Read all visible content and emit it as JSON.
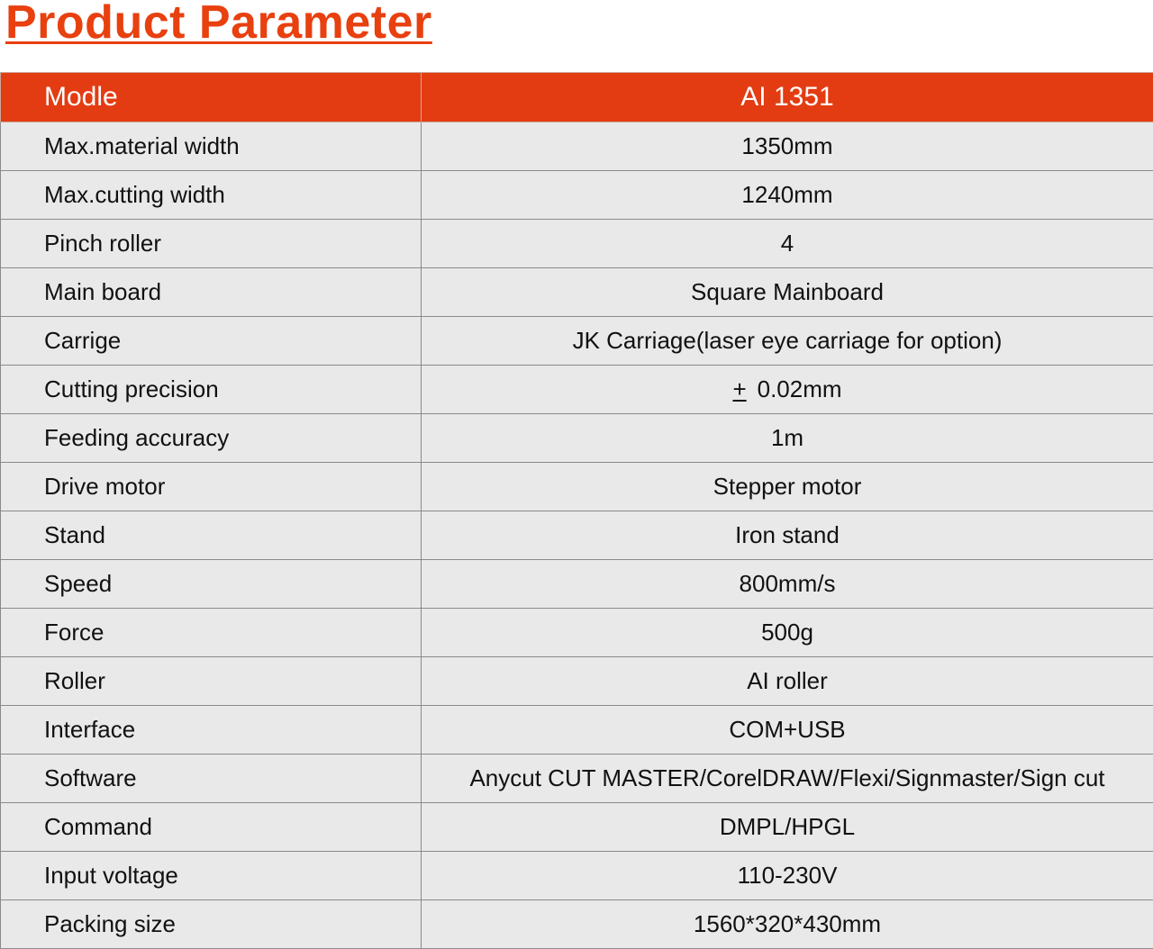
{
  "title": "Product Parameter",
  "table": {
    "header": [
      "Modle",
      "AI 1351"
    ],
    "rows": [
      {
        "label": "Max.material width",
        "value": "1350mm"
      },
      {
        "label": "Max.cutting width",
        "value": "1240mm"
      },
      {
        "label": "Pinch roller",
        "value": "4"
      },
      {
        "label": "Main board",
        "value": "Square Mainboard"
      },
      {
        "label": "Carrige",
        "value": "JK Carriage(laser eye carriage for option)"
      },
      {
        "label": "Cutting precision",
        "value": "0.02mm",
        "value_prefix": "+"
      },
      {
        "label": "Feeding accuracy",
        "value": "1m"
      },
      {
        "label": "Drive motor",
        "value": "Stepper motor"
      },
      {
        "label": "Stand",
        "value": "Iron stand"
      },
      {
        "label": "Speed",
        "value": "800mm/s"
      },
      {
        "label": "Force",
        "value": "500g"
      },
      {
        "label": "Roller",
        "value": "AI roller"
      },
      {
        "label": "Interface",
        "value": "COM+USB"
      },
      {
        "label": "Software",
        "value": "Anycut CUT MASTER/CorelDRAW/Flexi/Signmaster/Sign cut"
      },
      {
        "label": "Command",
        "value": "DMPL/HPGL"
      },
      {
        "label": "Input voltage",
        "value": "110-230V"
      },
      {
        "label": "Packing size",
        "value": "1560*320*430mm"
      }
    ]
  },
  "colors": {
    "accent": "#e8400f",
    "header_bg": "#e43c12",
    "row_bg": "#e9e9e9",
    "border": "#8a8a8a"
  }
}
